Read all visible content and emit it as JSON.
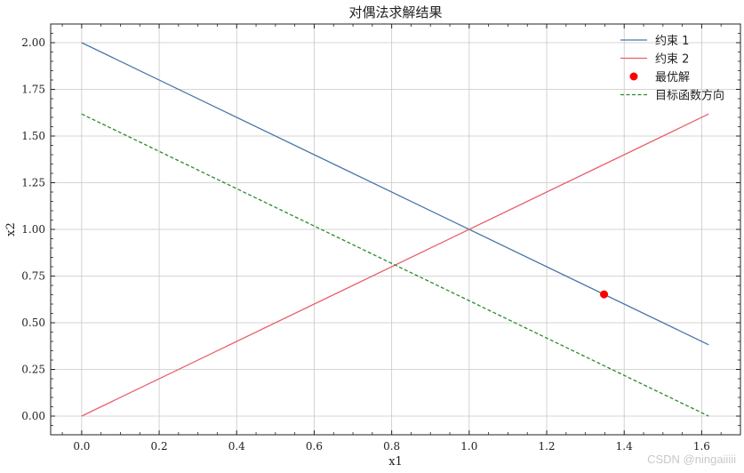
{
  "chart_data": {
    "type": "line",
    "title": "对偶法求解结果",
    "xlabel": "x1",
    "ylabel": "x2",
    "xlim": [
      -0.08,
      1.7
    ],
    "ylim": [
      -0.1,
      2.1
    ],
    "x_ticks": [
      0.0,
      0.2,
      0.4,
      0.6,
      0.8,
      1.0,
      1.2,
      1.4,
      1.6
    ],
    "x_tick_labels": [
      "0.0",
      "0.2",
      "0.4",
      "0.6",
      "0.8",
      "1.0",
      "1.2",
      "1.4",
      "1.6"
    ],
    "y_ticks": [
      0.0,
      0.25,
      0.5,
      0.75,
      1.0,
      1.25,
      1.5,
      1.75,
      2.0
    ],
    "y_tick_labels": [
      "0.00",
      "0.25",
      "0.50",
      "0.75",
      "1.00",
      "1.25",
      "1.50",
      "1.75",
      "2.00"
    ],
    "grid": true,
    "legend_position": "top-right",
    "series": [
      {
        "name": "约束 1",
        "kind": "line",
        "color": "#4a77a8",
        "dash": "solid",
        "x": [
          0.0,
          1.618
        ],
        "y": [
          2.0,
          0.382
        ]
      },
      {
        "name": "约束 2",
        "kind": "line",
        "color": "#e8606c",
        "dash": "solid",
        "x": [
          0.0,
          1.618
        ],
        "y": [
          0.0,
          1.618
        ]
      },
      {
        "name": "最优解",
        "kind": "scatter",
        "color": "#ff0000",
        "x": [
          1.348
        ],
        "y": [
          0.652
        ]
      },
      {
        "name": "目标函数方向",
        "kind": "line",
        "color": "#2a8a2a",
        "dash": "dashed",
        "x": [
          0.0,
          1.618
        ],
        "y": [
          1.618,
          0.0
        ]
      }
    ]
  },
  "watermark": "CSDN @ningaiiiii"
}
